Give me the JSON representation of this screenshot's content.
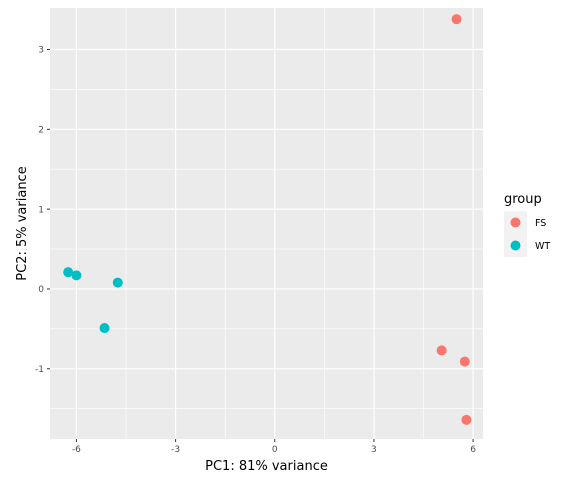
{
  "chart_data": {
    "type": "scatter",
    "xlabel": "PC1: 81% variance",
    "ylabel": "PC2: 5% variance",
    "xlim": [
      -6.8,
      6.3
    ],
    "ylim": [
      -1.88,
      3.52
    ],
    "x_ticks": [
      -6,
      -3,
      0,
      3,
      6
    ],
    "x_tick_labels": [
      "-6",
      "-3",
      "0",
      "3",
      "6"
    ],
    "y_ticks": [
      -1,
      0,
      1,
      2,
      3
    ],
    "y_tick_labels": [
      "-1",
      "0",
      "1",
      "2",
      "3"
    ],
    "grid": true,
    "legend": {
      "title": "group",
      "position": "right"
    },
    "series": [
      {
        "name": "FS",
        "color": "#F8766D",
        "points": [
          {
            "x": 5.5,
            "y": 3.38
          },
          {
            "x": 5.05,
            "y": -0.77
          },
          {
            "x": 5.75,
            "y": -0.91
          },
          {
            "x": 5.8,
            "y": -1.64
          }
        ]
      },
      {
        "name": "WT",
        "color": "#00BFC4",
        "points": [
          {
            "x": -6.25,
            "y": 0.21
          },
          {
            "x": -6.0,
            "y": 0.17
          },
          {
            "x": -4.75,
            "y": 0.08
          },
          {
            "x": -5.15,
            "y": -0.49
          }
        ]
      }
    ]
  }
}
